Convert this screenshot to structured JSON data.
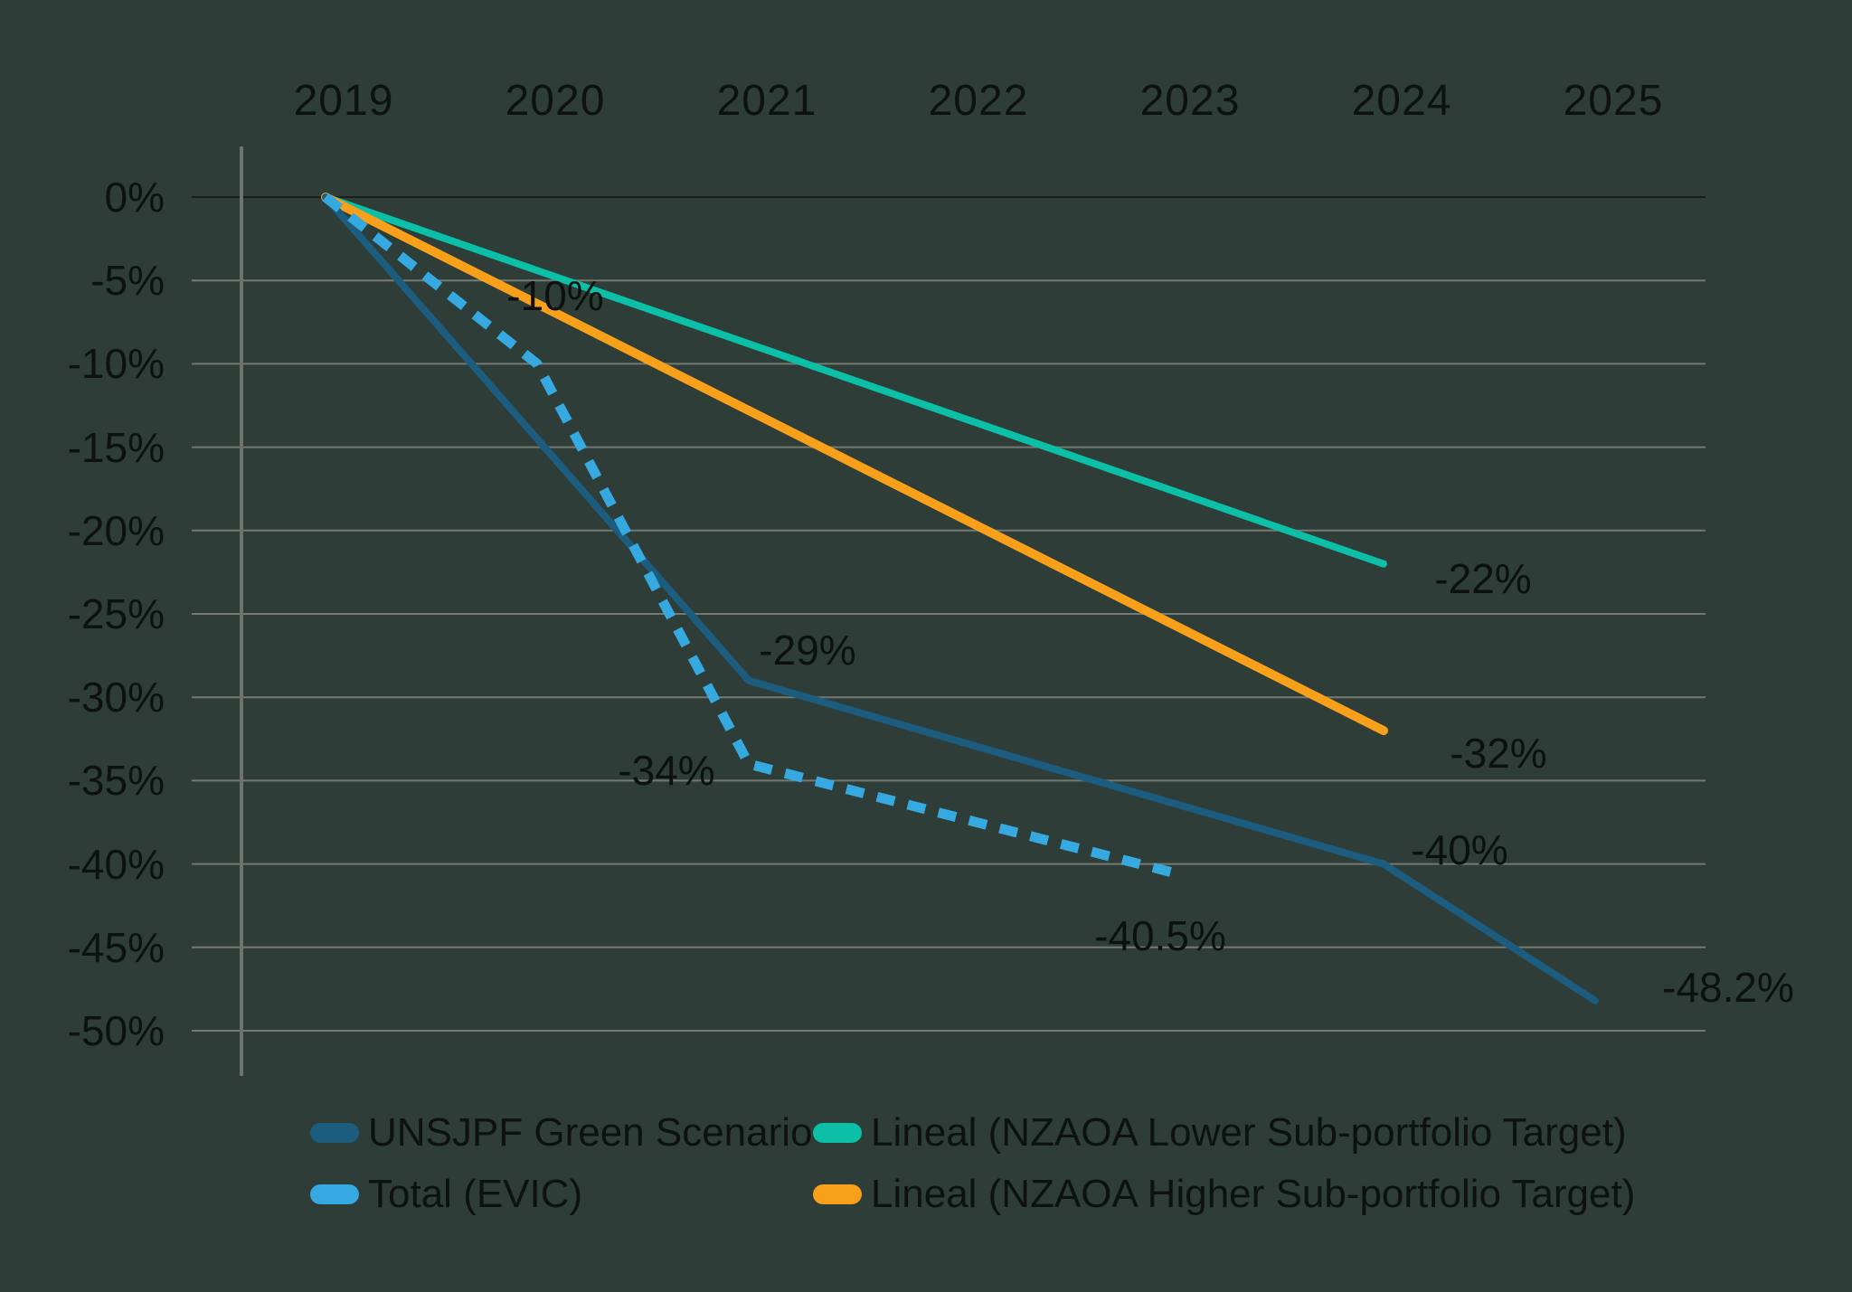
{
  "chart_data": {
    "type": "line",
    "title": "",
    "background_color": "#2e3d37",
    "grid": true,
    "grid_color": "#747971",
    "zero_line_color": "#171d1a",
    "axis_line_color": "#6e736f",
    "text_color": "#0d1210",
    "legend_position": "bottom",
    "x_tick_labels": [
      "2019",
      "2020",
      "2021",
      "2022",
      "2023",
      "2024",
      "2025"
    ],
    "y_tick_labels": [
      "0%",
      "-5%",
      "-10%",
      "-15%",
      "-20%",
      "-25%",
      "-30%",
      "-35%",
      "-40%",
      "-45%",
      "-50%"
    ],
    "ylim": [
      -50,
      0
    ],
    "x_range": [
      2019,
      2025
    ],
    "series": [
      {
        "name": "UNSJPF Green Scenario",
        "color": "#1b5c7f",
        "line_style": "solid",
        "points": [
          {
            "year": 2019,
            "value": 0
          },
          {
            "year": 2021,
            "value": -29
          },
          {
            "year": 2024,
            "value": -40
          },
          {
            "year": 2025,
            "value": -48.2
          }
        ],
        "annotations": [
          {
            "text": "-29%",
            "year": 2021,
            "value": -29
          },
          {
            "text": "-40%",
            "year": 2024,
            "value": -40
          },
          {
            "text": "-48.2%",
            "year": 2025,
            "value": -48.2
          }
        ]
      },
      {
        "name": "Total (EVIC)",
        "color": "#36a9e1",
        "line_style": "dashed",
        "points": [
          {
            "year": 2019,
            "value": 0
          },
          {
            "year": 2020,
            "value": -10
          },
          {
            "year": 2021,
            "value": -34
          },
          {
            "year": 2023,
            "value": -40.5
          }
        ],
        "annotations": [
          {
            "text": "-10%",
            "year": 2020,
            "value": -10
          },
          {
            "text": "-34%",
            "year": 2021,
            "value": -34
          },
          {
            "text": "-40.5%",
            "year": 2023,
            "value": -40.5
          }
        ]
      },
      {
        "name": "Lineal (NZAOA Lower Sub-portfolio Target)",
        "color": "#0cbfa7",
        "line_style": "solid",
        "points": [
          {
            "year": 2019,
            "value": 0
          },
          {
            "year": 2024,
            "value": -22
          }
        ],
        "annotations": [
          {
            "text": "-22%",
            "year": 2024,
            "value": -22
          }
        ]
      },
      {
        "name": "Lineal (NZAOA Higher Sub-portfolio Target)",
        "color": "#f9a01b",
        "line_style": "solid",
        "points": [
          {
            "year": 2019,
            "value": 0
          },
          {
            "year": 2024,
            "value": -32
          }
        ],
        "annotations": [
          {
            "text": "-32%",
            "year": 2024,
            "value": -32
          }
        ]
      }
    ]
  }
}
